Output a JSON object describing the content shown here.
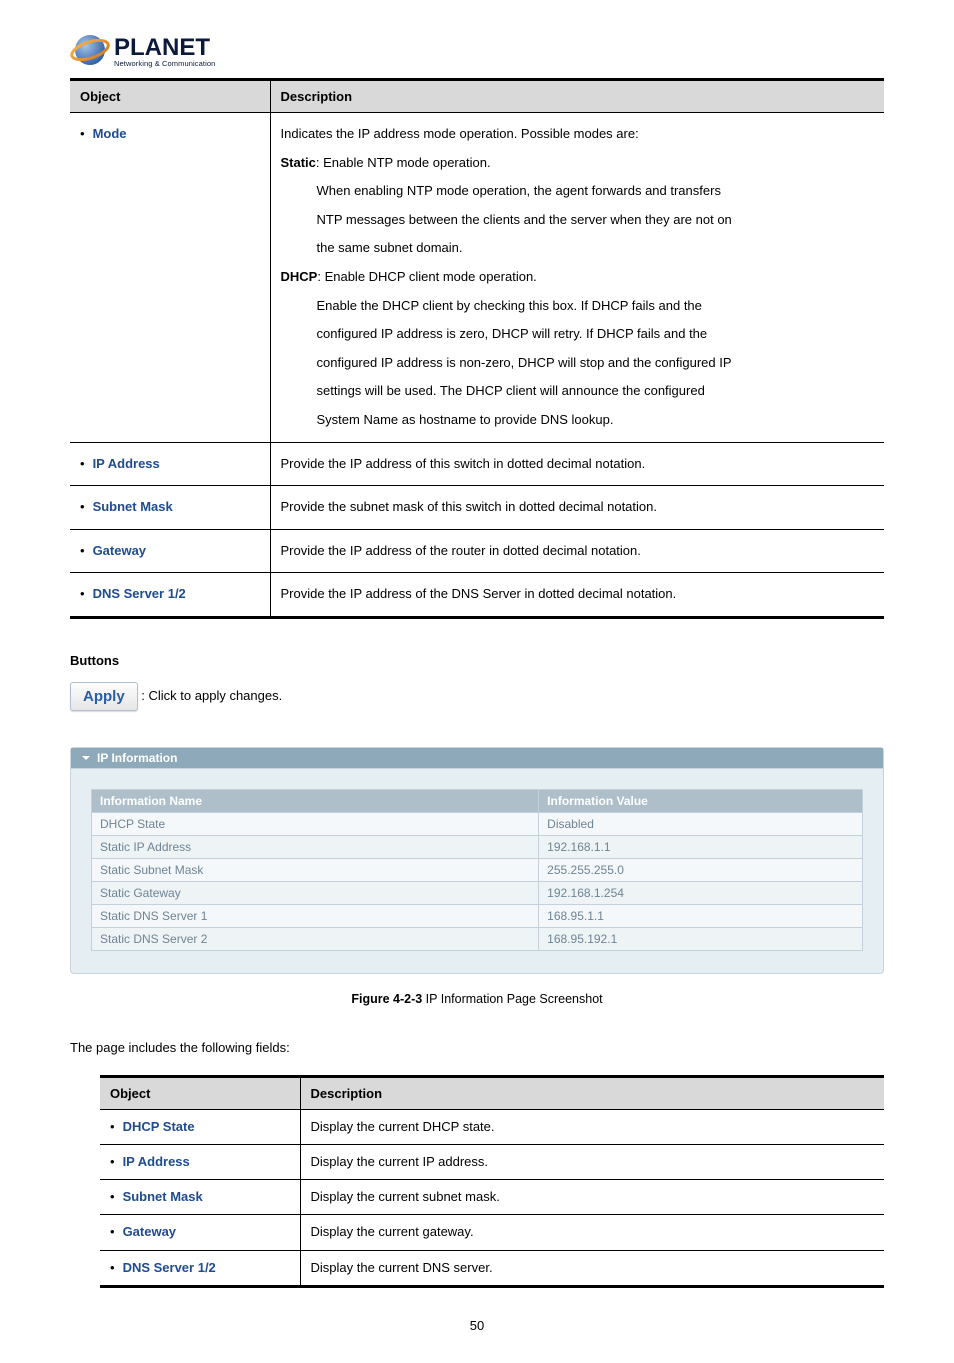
{
  "logo": {
    "brand": "PLANET",
    "tagline": "Networking & Communication"
  },
  "table1": {
    "headers": [
      "Object",
      "Description"
    ],
    "rows": [
      {
        "object": "Mode",
        "description_lines": [
          "Indicates the IP address mode operation. Possible modes are:",
          "§B§Static§/B§: Enable NTP mode operation.",
          "§I§When enabling NTP mode operation, the agent forwards and transfers",
          "§I§NTP messages between the clients and the server when they are not on",
          "§I§the same subnet domain.",
          "§B§DHCP§/B§: Enable DHCP client mode operation.",
          "§I§Enable the DHCP client by checking this box. If DHCP fails and the",
          "§I§configured IP address is zero, DHCP will retry. If DHCP fails and the",
          "§I§configured IP address is non-zero, DHCP will stop and the configured IP",
          "§I§settings will be used. The DHCP client will announce the configured",
          "§I§System Name as hostname to provide DNS lookup."
        ]
      },
      {
        "object": "IP Address",
        "description": "Provide the IP address of this switch in dotted decimal notation."
      },
      {
        "object": "Subnet Mask",
        "description": "Provide the subnet mask of this switch in dotted decimal notation."
      },
      {
        "object": "Gateway",
        "description": "Provide the IP address of the router in dotted decimal notation."
      },
      {
        "object": "DNS Server 1/2",
        "description": "Provide the IP address of the DNS Server in dotted decimal notation."
      }
    ]
  },
  "buttons": {
    "heading": "Buttons",
    "apply_label": "Apply",
    "apply_desc": ": Click to apply changes."
  },
  "ip_panel": {
    "title": "IP Information",
    "headers": [
      "Information Name",
      "Information Value"
    ],
    "rows": [
      {
        "name": "DHCP State",
        "value": "Disabled"
      },
      {
        "name": "Static IP Address",
        "value": "192.168.1.1"
      },
      {
        "name": "Static Subnet Mask",
        "value": "255.255.255.0"
      },
      {
        "name": "Static Gateway",
        "value": "192.168.1.254"
      },
      {
        "name": "Static DNS Server 1",
        "value": "168.95.1.1"
      },
      {
        "name": "Static DNS Server 2",
        "value": "168.95.192.1"
      }
    ]
  },
  "figure": {
    "label": "Figure 4-2-3",
    "text": " IP Information Page Screenshot"
  },
  "intro": "The page includes the following fields:",
  "table2": {
    "headers": [
      "Object",
      "Description"
    ],
    "rows": [
      {
        "object": "DHCP State",
        "description": "Display the current DHCP state."
      },
      {
        "object": "IP Address",
        "description": "Display the current IP address."
      },
      {
        "object": "Subnet Mask",
        "description": "Display the current subnet mask."
      },
      {
        "object": "Gateway",
        "description": "Display the current gateway."
      },
      {
        "object": "DNS Server 1/2",
        "description": "Display the current DNS server."
      }
    ]
  },
  "page_number": "50",
  "colors": {
    "planet_blue": "#2b5faa",
    "header_gray": "#d9d9d9",
    "panel_header": "#8ea9ba",
    "info_th": "#aebfca"
  }
}
